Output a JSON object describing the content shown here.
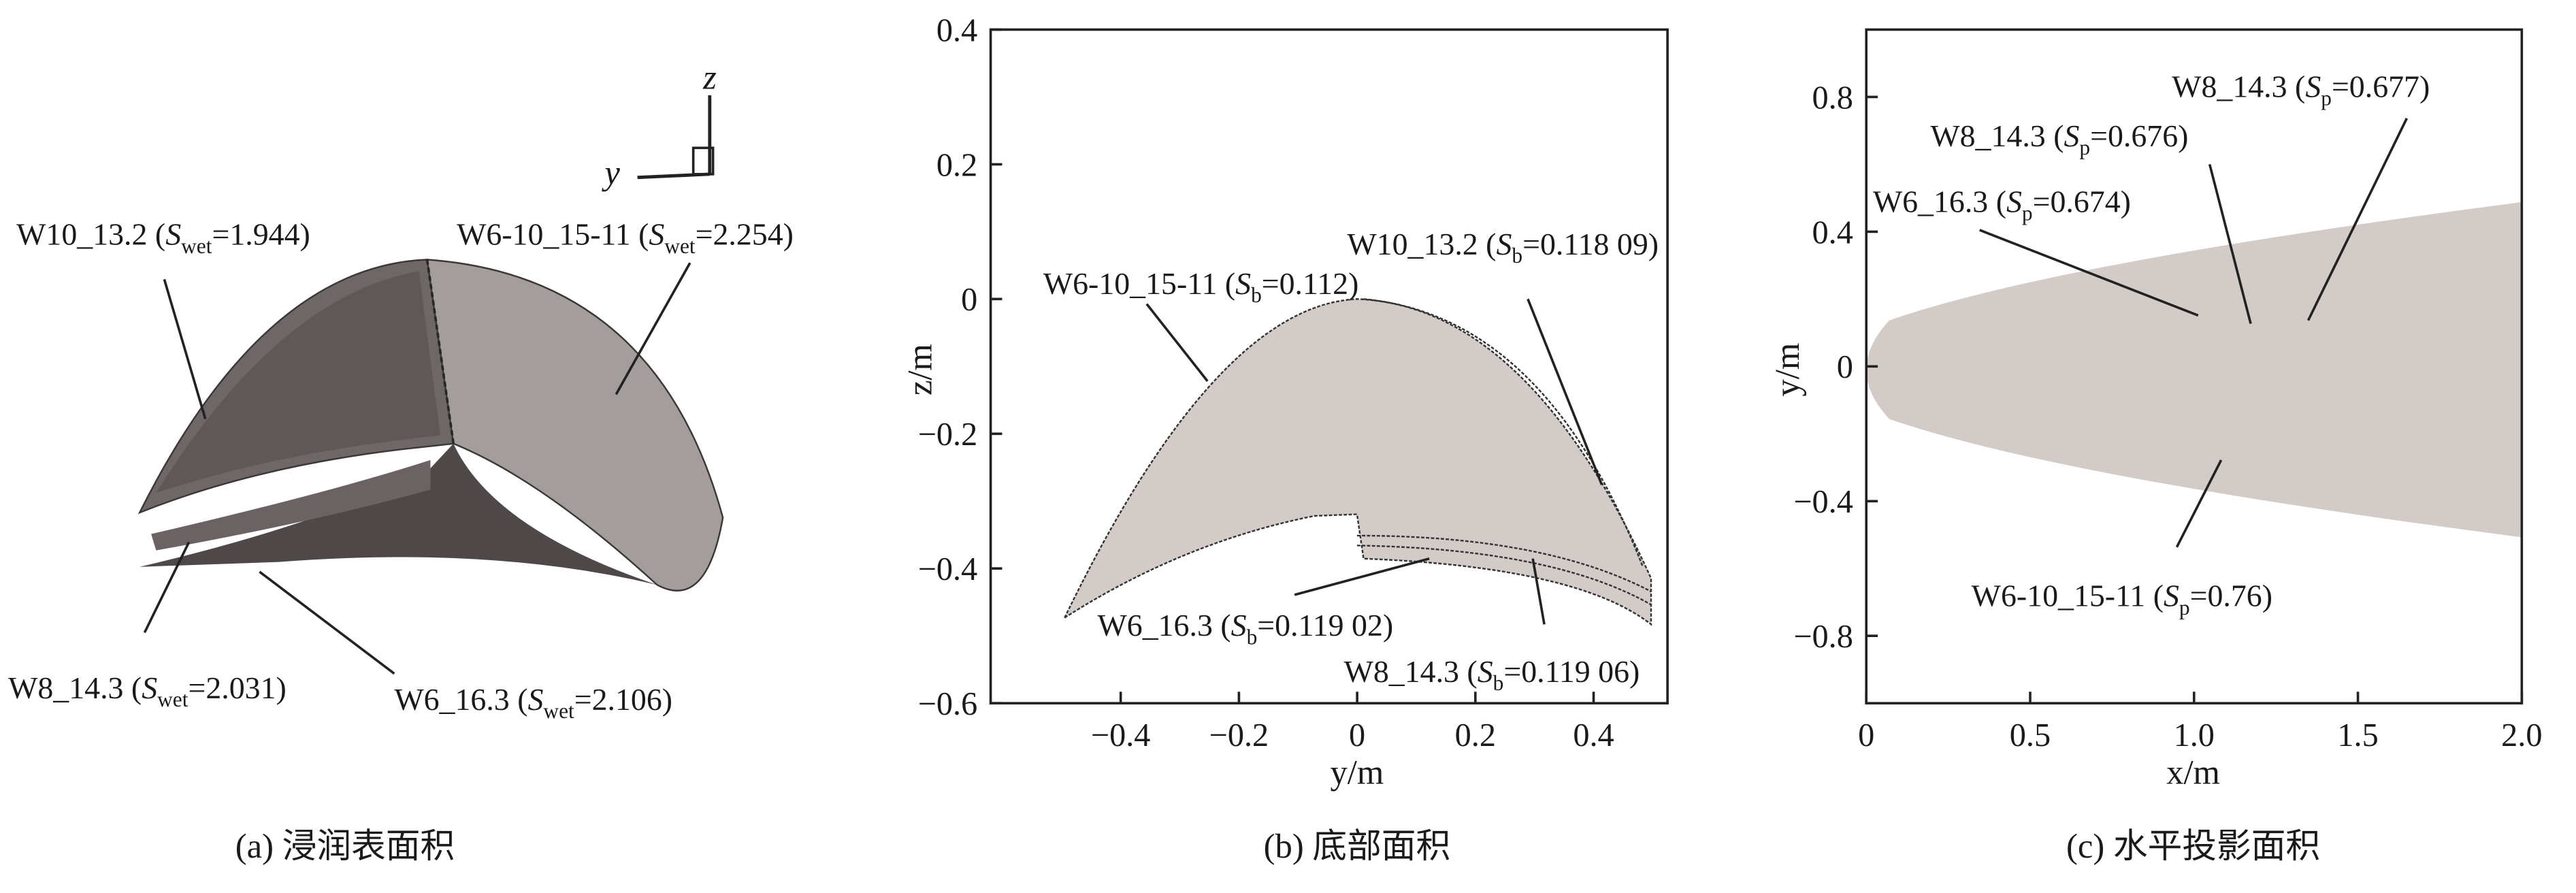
{
  "chart_data": [
    {
      "type": "surface",
      "axis_labels": {
        "y": "y",
        "z": "z"
      },
      "annotations": [
        {
          "before": "W10_13.2 (",
          "symbol": "S",
          "sub": "wet",
          "after": "=1.944)"
        },
        {
          "before": "W6-10_15-11 (",
          "symbol": "S",
          "sub": "wet",
          "after": "=2.254)"
        },
        {
          "before": "W8_14.3 (",
          "symbol": "S",
          "sub": "wet",
          "after": "=2.031)"
        },
        {
          "before": "W6_16.3 (",
          "symbol": "S",
          "sub": "wet",
          "after": "=2.106)"
        }
      ],
      "caption": "(a) 浸润表面积"
    },
    {
      "type": "area",
      "xlabel": "y/m",
      "ylabel": "z/m",
      "xlim": [
        -0.62,
        0.525
      ],
      "ylim": [
        -0.6,
        0.4
      ],
      "xticks": [
        {
          "value": -0.4,
          "label": "−0.4"
        },
        {
          "value": -0.2,
          "label": "−0.2"
        },
        0,
        0.2,
        0.4
      ],
      "yticks": [
        {
          "value": -0.6,
          "label": "−0.6"
        },
        {
          "value": -0.4,
          "label": "−0.4"
        },
        {
          "value": -0.2,
          "label": "−0.2"
        },
        0,
        0.2,
        0.4
      ],
      "annotations": [
        {
          "before": "W10_13.2 (",
          "symbol": "S",
          "sub": "b",
          "after": "=0.118 09)"
        },
        {
          "before": "W6-10_15-11 (",
          "symbol": "S",
          "sub": "b",
          "after": "=0.112)"
        },
        {
          "before": "W6_16.3 (",
          "symbol": "S",
          "sub": "b",
          "after": "=0.119 02)"
        },
        {
          "before": "W8_14.3 (",
          "symbol": "S",
          "sub": "b",
          "after": "=0.119 06)"
        }
      ],
      "caption": "(b) 底部面积"
    },
    {
      "type": "area",
      "xlabel": "x/m",
      "ylabel": "y/m",
      "xlim": [
        0,
        2
      ],
      "ylim": [
        -1,
        1
      ],
      "xticks": [
        0,
        0.5,
        {
          "value": 1,
          "label": "1.0"
        },
        1.5,
        {
          "value": 2,
          "label": "2.0"
        }
      ],
      "yticks": [
        {
          "value": -0.8,
          "label": "−0.8"
        },
        {
          "value": -0.4,
          "label": "−0.4"
        },
        0,
        0.4,
        0.8
      ],
      "annotations": [
        {
          "before": "W8_14.3 (",
          "symbol": "S",
          "sub": "p",
          "after": "=0.677)"
        },
        {
          "before": "W8_14.3 (",
          "symbol": "S",
          "sub": "p",
          "after": "=0.676)"
        },
        {
          "before": "W6_16.3 (",
          "symbol": "S",
          "sub": "p",
          "after": "=0.674)"
        },
        {
          "before": "W6-10_15-11 (",
          "symbol": "S",
          "sub": "p",
          "after": "=0.76)"
        }
      ],
      "caption": "(c) 水平投影面积"
    }
  ]
}
